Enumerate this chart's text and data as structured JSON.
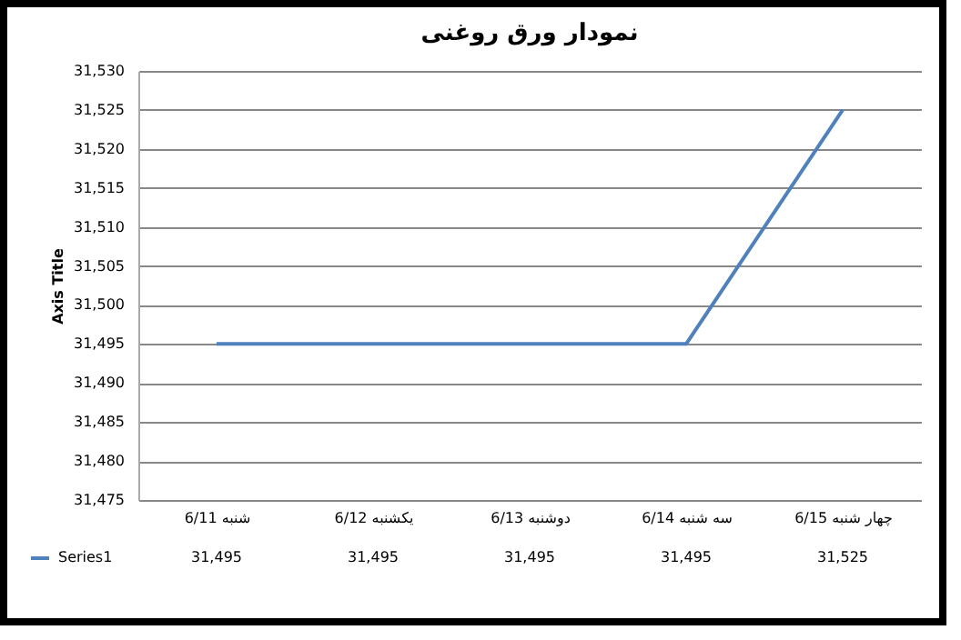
{
  "chart_data": {
    "type": "line",
    "title": "نمودار ورق روغنی",
    "ylabel": "Axis Title",
    "categories": [
      "شنبه 6/11",
      "یکشنبه 6/12",
      "دوشنبه 6/13",
      "سه شنبه 6/14",
      "چهار شنبه 6/15"
    ],
    "series": [
      {
        "name": "Series1",
        "color": "#4f81bd",
        "values": [
          31495,
          31495,
          31495,
          31495,
          31525
        ]
      }
    ],
    "ylim": [
      31475,
      31530
    ],
    "yticks": [
      {
        "value": 31475,
        "label": "31,475"
      },
      {
        "value": 31480,
        "label": "31,480"
      },
      {
        "value": 31485,
        "label": "31,485"
      },
      {
        "value": 31490,
        "label": "31,490"
      },
      {
        "value": 31495,
        "label": "31,495"
      },
      {
        "value": 31500,
        "label": "31,500"
      },
      {
        "value": 31505,
        "label": "31,505"
      },
      {
        "value": 31510,
        "label": "31,510"
      },
      {
        "value": 31515,
        "label": "31,515"
      },
      {
        "value": 31520,
        "label": "31,520"
      },
      {
        "value": 31525,
        "label": "31,525"
      },
      {
        "value": 31530,
        "label": "31,530"
      }
    ],
    "grid": "y",
    "legend": "bottom left",
    "value_labels": [
      "31,495",
      "31,495",
      "31,495",
      "31,495",
      "31,525"
    ]
  }
}
